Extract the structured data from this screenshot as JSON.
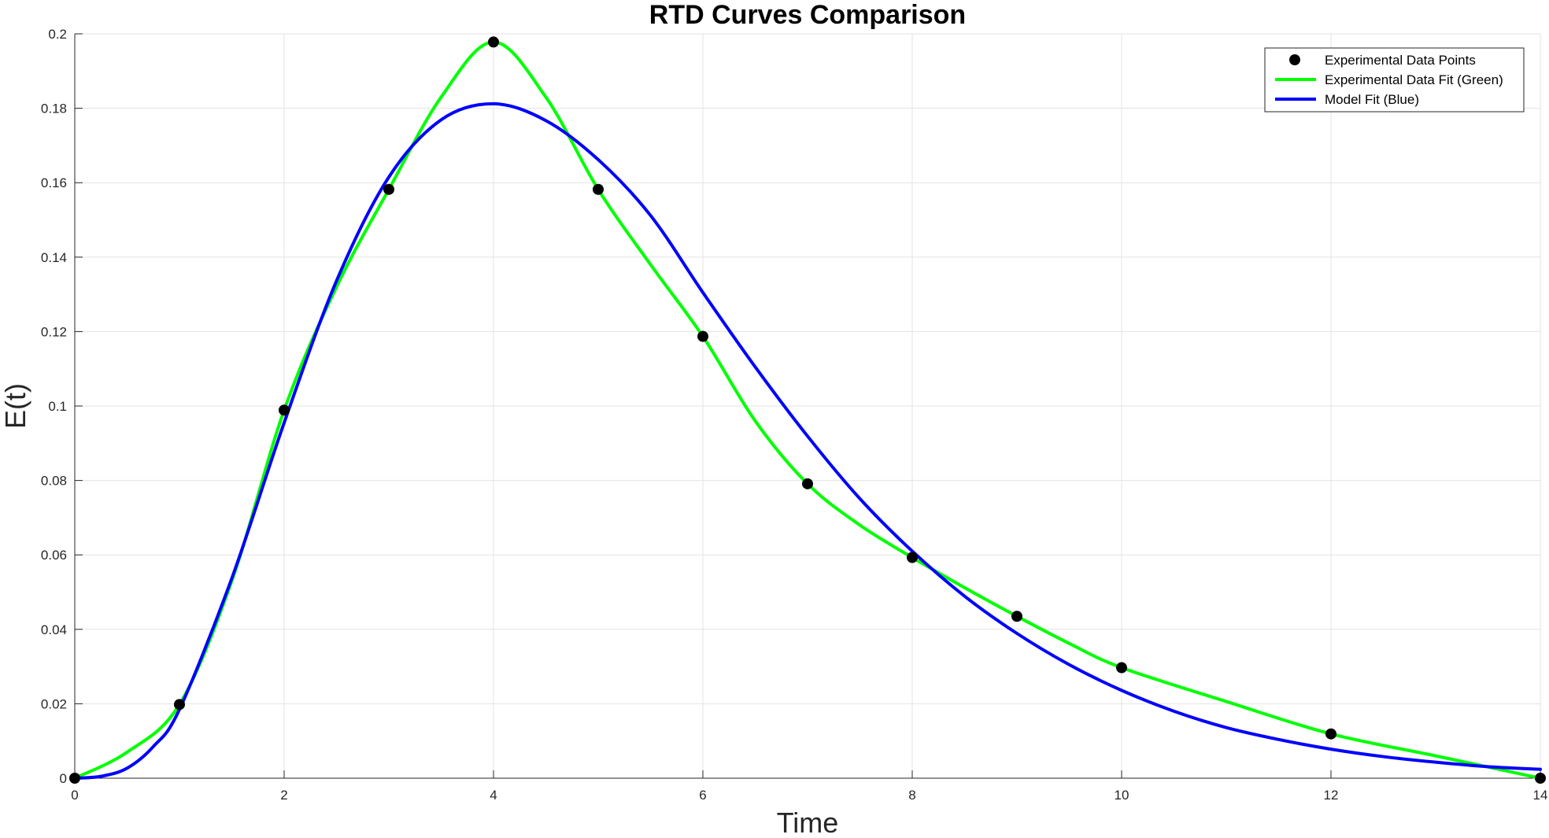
{
  "chart_data": {
    "type": "line",
    "title": "RTD Curves Comparison",
    "xlabel": "Time",
    "ylabel": "E(t)",
    "xlim": [
      0,
      14
    ],
    "ylim": [
      0,
      0.2
    ],
    "x_ticks": [
      0,
      2,
      4,
      6,
      8,
      10,
      12,
      14
    ],
    "y_ticks": [
      0,
      0.02,
      0.04,
      0.06,
      0.08,
      0.1,
      0.12,
      0.14,
      0.16,
      0.18,
      0.2
    ],
    "x_tick_labels": [
      "0",
      "2",
      "4",
      "6",
      "8",
      "10",
      "12",
      "14"
    ],
    "y_tick_labels": [
      "0",
      "0.02",
      "0.04",
      "0.06",
      "0.08",
      "0.1",
      "0.12",
      "0.14",
      "0.16",
      "0.18",
      "0.2"
    ],
    "grid": true,
    "legend_position": "top-right",
    "series": [
      {
        "name": "Experimental Data Points",
        "kind": "scatter",
        "color": "#000000",
        "x": [
          0,
          1,
          2,
          3,
          4,
          5,
          6,
          7,
          8,
          9,
          10,
          12,
          14
        ],
        "y": [
          0,
          0.0198,
          0.0989,
          0.1582,
          0.1978,
          0.1582,
          0.1187,
          0.0791,
          0.0593,
          0.0435,
          0.0297,
          0.0119,
          0
        ]
      },
      {
        "name": "Experimental Data Fit (Green)",
        "kind": "line",
        "color": "#00ff00",
        "x": [
          0,
          0.5,
          1,
          1.5,
          2,
          2.5,
          3,
          3.5,
          4,
          4.5,
          5,
          5.5,
          6,
          6.5,
          7,
          7.5,
          8,
          8.5,
          9,
          9.5,
          10,
          11,
          12,
          13,
          14
        ],
        "y": [
          0,
          0.007,
          0.0198,
          0.053,
          0.0989,
          0.132,
          0.1582,
          0.183,
          0.1978,
          0.183,
          0.1582,
          0.138,
          0.1187,
          0.096,
          0.0791,
          0.068,
          0.0593,
          0.0512,
          0.0435,
          0.0362,
          0.0297,
          0.0206,
          0.0119,
          0.006,
          0
        ]
      },
      {
        "name": "Model Fit (Blue)",
        "kind": "line",
        "color": "#0000ff",
        "x": [
          0,
          0.25,
          0.5,
          0.75,
          1,
          1.5,
          2,
          2.5,
          3,
          3.5,
          4,
          4.5,
          5,
          5.5,
          6,
          6.5,
          7,
          7.5,
          8,
          8.5,
          9,
          9.5,
          10,
          10.5,
          11,
          11.5,
          12,
          12.5,
          13,
          13.5,
          14
        ],
        "y": [
          0,
          0.0005,
          0.0027,
          0.0085,
          0.0185,
          0.0537,
          0.0955,
          0.1336,
          0.1615,
          0.1769,
          0.1812,
          0.1767,
          0.1662,
          0.1512,
          0.1305,
          0.1105,
          0.0919,
          0.0751,
          0.061,
          0.0489,
          0.0389,
          0.0305,
          0.0236,
          0.018,
          0.0136,
          0.0104,
          0.0078,
          0.0058,
          0.0043,
          0.0031,
          0.0024
        ]
      }
    ]
  }
}
